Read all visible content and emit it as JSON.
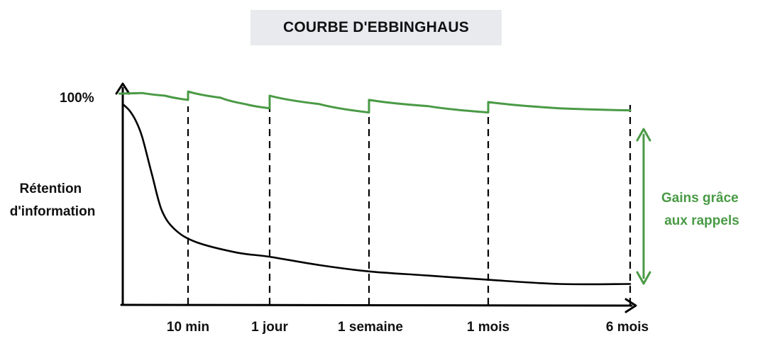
{
  "colors": {
    "retention_with_reviews": "#4a9a45",
    "forgetting_curve": "#000000",
    "title_bg": "#e8eaee"
  },
  "chart_data": {
    "type": "line",
    "title": "COURBE D'EBBINGHAUS",
    "ylabel": [
      "Rétention",
      "d'information"
    ],
    "y_tick_label": "100%",
    "x_tick_labels": [
      "10 min",
      "1 jour",
      "1 semaine",
      "1 mois",
      "6 mois"
    ],
    "ylim": [
      0,
      100
    ],
    "annotation": [
      "Gains grâce",
      "aux rappels"
    ],
    "series": [
      {
        "points": [
          [
            0,
            96
          ],
          [
            0.1,
            93
          ],
          [
            0.2,
            88
          ],
          [
            0.3,
            80
          ],
          [
            0.45,
            62
          ],
          [
            0.6,
            45
          ],
          [
            0.8,
            36
          ],
          [
            1.1,
            30
          ],
          [
            1.6,
            25
          ],
          [
            2,
            23
          ],
          [
            2.5,
            19
          ],
          [
            3,
            16
          ],
          [
            3.5,
            14
          ],
          [
            4,
            12
          ],
          [
            4.5,
            10
          ],
          [
            5,
            10
          ]
        ]
      },
      {
        "points": [
          [
            -0.05,
            101
          ],
          [
            0.3,
            101.3
          ],
          [
            0.65,
            100
          ],
          [
            1,
            98
          ],
          [
            1,
            102
          ],
          [
            1.4,
            99
          ],
          [
            1.7,
            96
          ],
          [
            2,
            94
          ],
          [
            2,
            100
          ],
          [
            2.5,
            96
          ],
          [
            3,
            92
          ],
          [
            3,
            98
          ],
          [
            3.5,
            95
          ],
          [
            4,
            92
          ],
          [
            4,
            97
          ],
          [
            4.5,
            94
          ],
          [
            5,
            93
          ]
        ]
      }
    ]
  }
}
